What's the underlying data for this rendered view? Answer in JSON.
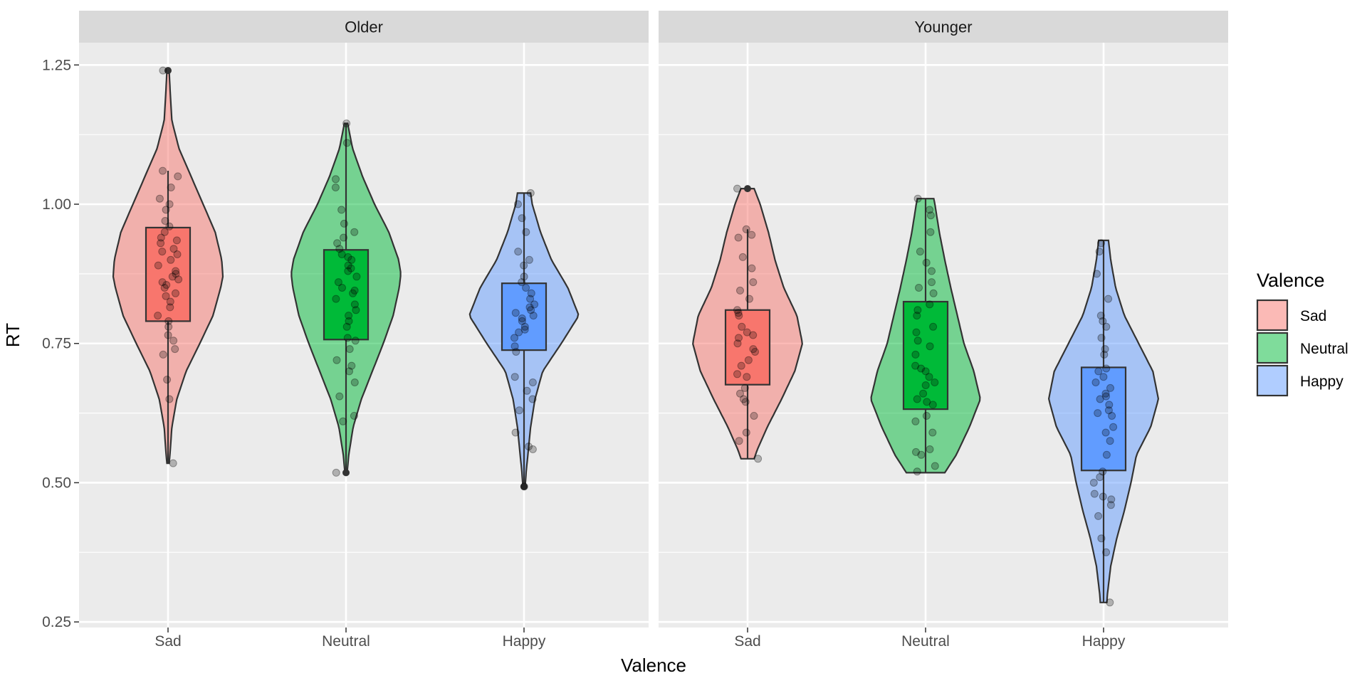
{
  "chart_data": {
    "type": "violin",
    "facets": [
      "Older",
      "Younger"
    ],
    "categories": [
      "Sad",
      "Neutral",
      "Happy"
    ],
    "xlabel": "Valence",
    "ylabel": "RT",
    "ylim": [
      0.24,
      1.29
    ],
    "yticks": [
      0.25,
      0.5,
      0.75,
      1.0,
      1.25
    ],
    "ytick_labels": [
      "0.25",
      "0.50",
      "0.75",
      "1.00",
      "1.25"
    ],
    "legend": {
      "title": "Valence",
      "placement": "right",
      "entries": [
        "Sad",
        "Neutral",
        "Happy"
      ]
    },
    "colors": {
      "Sad": "#F8766D",
      "Neutral": "#00BA38",
      "Happy": "#619CFF",
      "panel_bg": "#EBEBEB",
      "strip_bg": "#D9D9D9"
    },
    "panels": [
      {
        "facet": "Older",
        "groups": [
          {
            "category": "Sad",
            "violin": {
              "min": 0.535,
              "max": 1.24,
              "profile": [
                [
                  0.535,
                  0.02
                ],
                [
                  0.55,
                  0.035
                ],
                [
                  0.6,
                  0.07
                ],
                [
                  0.65,
                  0.16
                ],
                [
                  0.7,
                  0.33
                ],
                [
                  0.75,
                  0.58
                ],
                [
                  0.8,
                  0.82
                ],
                [
                  0.85,
                  0.96
                ],
                [
                  0.87,
                  1.0
                ],
                [
                  0.9,
                  0.98
                ],
                [
                  0.95,
                  0.86
                ],
                [
                  1.0,
                  0.64
                ],
                [
                  1.05,
                  0.42
                ],
                [
                  1.1,
                  0.2
                ],
                [
                  1.15,
                  0.07
                ],
                [
                  1.2,
                  0.04
                ],
                [
                  1.24,
                  0.02
                ]
              ]
            },
            "box": {
              "whisker_low": 0.535,
              "q1": 0.79,
              "median": 0.875,
              "q3": 0.958,
              "whisker_high": 1.06,
              "outliers": [
                1.24
              ]
            },
            "points": [
              0.535,
              0.65,
              0.685,
              0.73,
              0.74,
              0.755,
              0.765,
              0.78,
              0.79,
              0.8,
              0.815,
              0.825,
              0.835,
              0.84,
              0.85,
              0.855,
              0.86,
              0.865,
              0.87,
              0.875,
              0.88,
              0.89,
              0.9,
              0.91,
              0.915,
              0.92,
              0.93,
              0.935,
              0.94,
              0.95,
              0.96,
              0.97,
              0.99,
              1.0,
              1.01,
              1.03,
              1.05,
              1.06,
              1.24
            ]
          },
          {
            "category": "Neutral",
            "violin": {
              "min": 0.518,
              "max": 1.145,
              "profile": [
                [
                  0.518,
                  0.02
                ],
                [
                  0.55,
                  0.05
                ],
                [
                  0.6,
                  0.13
                ],
                [
                  0.65,
                  0.28
                ],
                [
                  0.7,
                  0.48
                ],
                [
                  0.75,
                  0.68
                ],
                [
                  0.8,
                  0.86
                ],
                [
                  0.85,
                  0.97
                ],
                [
                  0.875,
                  1.0
                ],
                [
                  0.9,
                  0.96
                ],
                [
                  0.95,
                  0.78
                ],
                [
                  1.0,
                  0.52
                ],
                [
                  1.05,
                  0.3
                ],
                [
                  1.1,
                  0.12
                ],
                [
                  1.145,
                  0.03
                ]
              ]
            },
            "box": {
              "whisker_low": 0.518,
              "q1": 0.757,
              "median": 0.84,
              "q3": 0.918,
              "whisker_high": 1.145,
              "outliers": [
                0.518
              ]
            },
            "points": [
              0.518,
              0.61,
              0.62,
              0.655,
              0.68,
              0.7,
              0.71,
              0.72,
              0.74,
              0.755,
              0.76,
              0.78,
              0.79,
              0.8,
              0.81,
              0.82,
              0.83,
              0.84,
              0.845,
              0.85,
              0.86,
              0.87,
              0.88,
              0.885,
              0.89,
              0.9,
              0.905,
              0.91,
              0.92,
              0.93,
              0.94,
              0.95,
              0.965,
              0.99,
              1.03,
              1.045,
              1.11,
              1.145
            ]
          },
          {
            "category": "Happy",
            "violin": {
              "min": 0.493,
              "max": 1.02,
              "profile": [
                [
                  0.493,
                  0.02
                ],
                [
                  0.52,
                  0.04
                ],
                [
                  0.55,
                  0.07
                ],
                [
                  0.6,
                  0.12
                ],
                [
                  0.65,
                  0.2
                ],
                [
                  0.7,
                  0.34
                ],
                [
                  0.75,
                  0.68
                ],
                [
                  0.8,
                  1.0
                ],
                [
                  0.85,
                  0.8
                ],
                [
                  0.9,
                  0.5
                ],
                [
                  0.95,
                  0.3
                ],
                [
                  1.0,
                  0.15
                ],
                [
                  1.02,
                  0.12
                ]
              ]
            },
            "box": {
              "whisker_low": 0.493,
              "q1": 0.738,
              "median": 0.8,
              "q3": 0.858,
              "whisker_high": 1.02,
              "outliers": [
                0.493
              ]
            },
            "points": [
              0.493,
              0.56,
              0.565,
              0.59,
              0.63,
              0.65,
              0.665,
              0.68,
              0.69,
              0.735,
              0.745,
              0.76,
              0.77,
              0.775,
              0.78,
              0.79,
              0.795,
              0.8,
              0.805,
              0.81,
              0.815,
              0.82,
              0.83,
              0.84,
              0.85,
              0.86,
              0.87,
              0.89,
              0.9,
              0.915,
              0.95,
              0.975,
              1.0,
              1.02
            ]
          }
        ]
      },
      {
        "facet": "Younger",
        "groups": [
          {
            "category": "Sad",
            "violin": {
              "min": 0.543,
              "max": 1.028,
              "profile": [
                [
                  0.543,
                  0.12
                ],
                [
                  0.56,
                  0.18
                ],
                [
                  0.6,
                  0.36
                ],
                [
                  0.65,
                  0.62
                ],
                [
                  0.7,
                  0.86
                ],
                [
                  0.75,
                  1.0
                ],
                [
                  0.8,
                  0.9
                ],
                [
                  0.85,
                  0.66
                ],
                [
                  0.9,
                  0.5
                ],
                [
                  0.95,
                  0.38
                ],
                [
                  1.0,
                  0.23
                ],
                [
                  1.028,
                  0.12
                ]
              ]
            },
            "box": {
              "whisker_low": 0.543,
              "q1": 0.676,
              "median": 0.745,
              "q3": 0.81,
              "whisker_high": 0.955,
              "outliers": [
                1.028
              ]
            },
            "points": [
              0.543,
              0.575,
              0.59,
              0.62,
              0.645,
              0.65,
              0.66,
              0.67,
              0.69,
              0.695,
              0.71,
              0.72,
              0.735,
              0.74,
              0.75,
              0.76,
              0.765,
              0.77,
              0.78,
              0.8,
              0.805,
              0.81,
              0.83,
              0.845,
              0.86,
              0.885,
              0.905,
              0.94,
              0.945,
              0.955,
              1.028
            ]
          },
          {
            "category": "Neutral",
            "violin": {
              "min": 0.518,
              "max": 1.01,
              "profile": [
                [
                  0.518,
                  0.35
                ],
                [
                  0.55,
                  0.56
                ],
                [
                  0.6,
                  0.8
                ],
                [
                  0.65,
                  1.0
                ],
                [
                  0.7,
                  0.88
                ],
                [
                  0.75,
                  0.7
                ],
                [
                  0.8,
                  0.58
                ],
                [
                  0.85,
                  0.46
                ],
                [
                  0.9,
                  0.35
                ],
                [
                  0.95,
                  0.25
                ],
                [
                  1.0,
                  0.17
                ],
                [
                  1.01,
                  0.15
                ]
              ]
            },
            "box": {
              "whisker_low": 0.518,
              "q1": 0.632,
              "median": 0.7,
              "q3": 0.825,
              "whisker_high": 1.01,
              "outliers": []
            },
            "points": [
              0.52,
              0.53,
              0.55,
              0.555,
              0.56,
              0.59,
              0.61,
              0.62,
              0.64,
              0.645,
              0.65,
              0.66,
              0.675,
              0.68,
              0.69,
              0.7,
              0.705,
              0.71,
              0.73,
              0.745,
              0.755,
              0.77,
              0.78,
              0.8,
              0.81,
              0.82,
              0.84,
              0.85,
              0.86,
              0.88,
              0.895,
              0.915,
              0.95,
              0.98,
              0.99,
              1.01
            ]
          },
          {
            "category": "Happy",
            "violin": {
              "min": 0.285,
              "max": 0.935,
              "profile": [
                [
                  0.285,
                  0.06
                ],
                [
                  0.3,
                  0.07
                ],
                [
                  0.35,
                  0.13
                ],
                [
                  0.4,
                  0.24
                ],
                [
                  0.45,
                  0.38
                ],
                [
                  0.5,
                  0.5
                ],
                [
                  0.55,
                  0.6
                ],
                [
                  0.6,
                  0.86
                ],
                [
                  0.65,
                  1.0
                ],
                [
                  0.7,
                  0.9
                ],
                [
                  0.75,
                  0.64
                ],
                [
                  0.8,
                  0.38
                ],
                [
                  0.85,
                  0.22
                ],
                [
                  0.9,
                  0.13
                ],
                [
                  0.935,
                  0.09
                ]
              ]
            },
            "box": {
              "whisker_low": 0.285,
              "q1": 0.522,
              "median": 0.625,
              "q3": 0.707,
              "whisker_high": 0.935,
              "outliers": []
            },
            "points": [
              0.285,
              0.375,
              0.4,
              0.44,
              0.46,
              0.47,
              0.475,
              0.48,
              0.5,
              0.51,
              0.52,
              0.55,
              0.575,
              0.59,
              0.6,
              0.62,
              0.625,
              0.63,
              0.64,
              0.65,
              0.655,
              0.66,
              0.67,
              0.68,
              0.69,
              0.7,
              0.705,
              0.73,
              0.74,
              0.76,
              0.78,
              0.79,
              0.8,
              0.83,
              0.875,
              0.915,
              0.93
            ]
          }
        ]
      }
    ]
  }
}
